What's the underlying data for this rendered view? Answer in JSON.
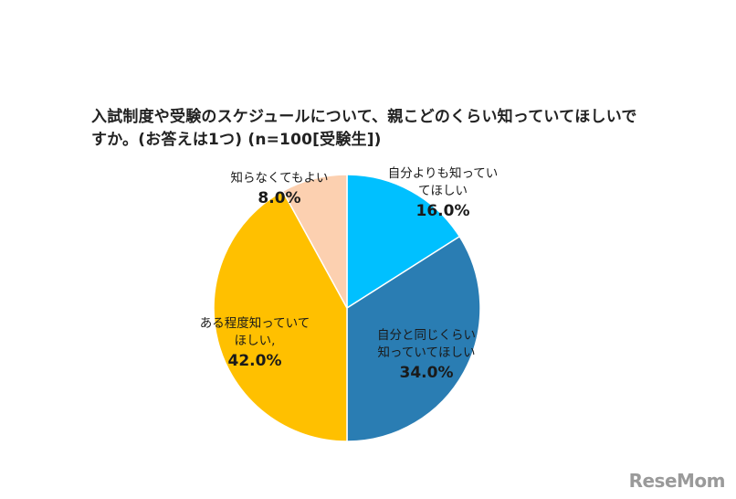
{
  "chart_data": {
    "type": "pie",
    "title": "入試制度や受験のスケジュールについて、親こどのくらい知っていてほしいですか。(お答えは1つ) (n=100[受験生])",
    "slices": [
      {
        "label": "自分よりも知ってい\nてほしい",
        "value": 16.0,
        "value_label": "16.0%",
        "color": "#00C0FF"
      },
      {
        "label": "自分と同じくらい\n知っていてほしい",
        "value": 34.0,
        "value_label": "34.0%",
        "color": "#2A7DB3"
      },
      {
        "label": "ある程度知っていて\nほしい,",
        "value": 42.0,
        "value_label": "42.0%",
        "color": "#FFC000"
      },
      {
        "label": "知らなくてもよい",
        "value": 8.0,
        "value_label": "8.0%",
        "color": "#FCD0B0"
      }
    ],
    "start_angle_deg": 0,
    "direction": "clockwise"
  },
  "watermark": {
    "text": "ReseMom"
  }
}
